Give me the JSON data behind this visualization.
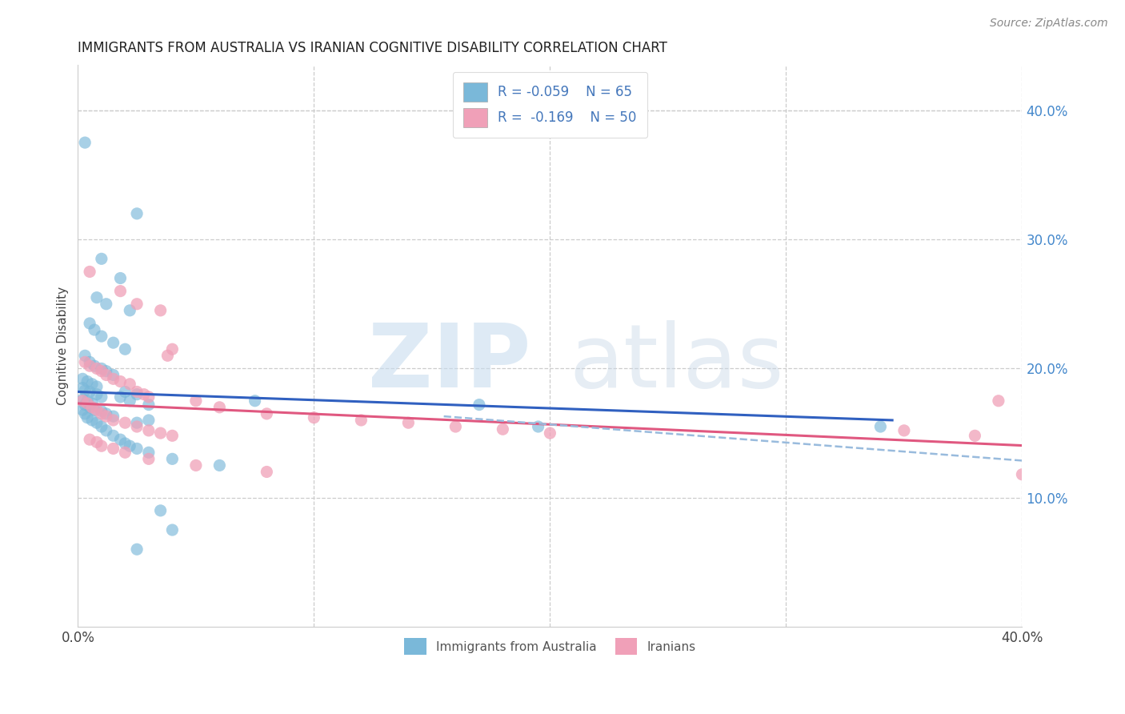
{
  "title": "IMMIGRANTS FROM AUSTRALIA VS IRANIAN COGNITIVE DISABILITY CORRELATION CHART",
  "source": "Source: ZipAtlas.com",
  "ylabel": "Cognitive Disability",
  "xlim": [
    0.0,
    0.4
  ],
  "ylim": [
    0.0,
    0.435
  ],
  "x_tick_positions": [
    0.0,
    0.1,
    0.2,
    0.3,
    0.4
  ],
  "x_tick_labels": [
    "0.0%",
    "",
    "",
    "",
    "40.0%"
  ],
  "y_ticks_right": [
    0.1,
    0.2,
    0.3,
    0.4
  ],
  "y_tick_labels_right": [
    "10.0%",
    "20.0%",
    "30.0%",
    "40.0%"
  ],
  "blue_color": "#7ab8d9",
  "pink_color": "#f0a0b8",
  "blue_line_color": "#3060c0",
  "pink_line_color": "#e05880",
  "dashed_line_color": "#99bbdd",
  "australia_scatter": [
    [
      0.003,
      0.375
    ],
    [
      0.025,
      0.32
    ],
    [
      0.01,
      0.285
    ],
    [
      0.018,
      0.27
    ],
    [
      0.008,
      0.255
    ],
    [
      0.012,
      0.25
    ],
    [
      0.022,
      0.245
    ],
    [
      0.005,
      0.235
    ],
    [
      0.007,
      0.23
    ],
    [
      0.01,
      0.225
    ],
    [
      0.015,
      0.22
    ],
    [
      0.02,
      0.215
    ],
    [
      0.003,
      0.21
    ],
    [
      0.005,
      0.205
    ],
    [
      0.007,
      0.202
    ],
    [
      0.01,
      0.2
    ],
    [
      0.012,
      0.198
    ],
    [
      0.015,
      0.195
    ],
    [
      0.002,
      0.192
    ],
    [
      0.004,
      0.19
    ],
    [
      0.006,
      0.188
    ],
    [
      0.008,
      0.186
    ],
    [
      0.002,
      0.185
    ],
    [
      0.003,
      0.183
    ],
    [
      0.005,
      0.182
    ],
    [
      0.008,
      0.18
    ],
    [
      0.01,
      0.178
    ],
    [
      0.002,
      0.176
    ],
    [
      0.004,
      0.175
    ],
    [
      0.006,
      0.173
    ],
    [
      0.003,
      0.172
    ],
    [
      0.005,
      0.17
    ],
    [
      0.007,
      0.168
    ],
    [
      0.01,
      0.167
    ],
    [
      0.012,
      0.165
    ],
    [
      0.015,
      0.163
    ],
    [
      0.018,
      0.178
    ],
    [
      0.02,
      0.182
    ],
    [
      0.022,
      0.175
    ],
    [
      0.025,
      0.18
    ],
    [
      0.03,
      0.172
    ],
    [
      0.002,
      0.168
    ],
    [
      0.003,
      0.165
    ],
    [
      0.004,
      0.162
    ],
    [
      0.006,
      0.16
    ],
    [
      0.008,
      0.158
    ],
    [
      0.01,
      0.155
    ],
    [
      0.025,
      0.158
    ],
    [
      0.03,
      0.16
    ],
    [
      0.012,
      0.152
    ],
    [
      0.015,
      0.148
    ],
    [
      0.018,
      0.145
    ],
    [
      0.02,
      0.142
    ],
    [
      0.022,
      0.14
    ],
    [
      0.025,
      0.138
    ],
    [
      0.03,
      0.135
    ],
    [
      0.04,
      0.13
    ],
    [
      0.06,
      0.125
    ],
    [
      0.075,
      0.175
    ],
    [
      0.17,
      0.172
    ],
    [
      0.195,
      0.155
    ],
    [
      0.34,
      0.155
    ],
    [
      0.035,
      0.09
    ],
    [
      0.04,
      0.075
    ],
    [
      0.025,
      0.06
    ]
  ],
  "iran_scatter": [
    [
      0.005,
      0.275
    ],
    [
      0.018,
      0.26
    ],
    [
      0.025,
      0.25
    ],
    [
      0.035,
      0.245
    ],
    [
      0.04,
      0.215
    ],
    [
      0.038,
      0.21
    ],
    [
      0.003,
      0.205
    ],
    [
      0.005,
      0.202
    ],
    [
      0.008,
      0.2
    ],
    [
      0.01,
      0.198
    ],
    [
      0.012,
      0.195
    ],
    [
      0.015,
      0.192
    ],
    [
      0.018,
      0.19
    ],
    [
      0.022,
      0.188
    ],
    [
      0.025,
      0.182
    ],
    [
      0.028,
      0.18
    ],
    [
      0.03,
      0.178
    ],
    [
      0.002,
      0.175
    ],
    [
      0.004,
      0.173
    ],
    [
      0.006,
      0.17
    ],
    [
      0.008,
      0.168
    ],
    [
      0.01,
      0.165
    ],
    [
      0.012,
      0.163
    ],
    [
      0.015,
      0.16
    ],
    [
      0.02,
      0.158
    ],
    [
      0.025,
      0.155
    ],
    [
      0.03,
      0.152
    ],
    [
      0.035,
      0.15
    ],
    [
      0.04,
      0.148
    ],
    [
      0.05,
      0.175
    ],
    [
      0.06,
      0.17
    ],
    [
      0.08,
      0.165
    ],
    [
      0.1,
      0.162
    ],
    [
      0.12,
      0.16
    ],
    [
      0.14,
      0.158
    ],
    [
      0.16,
      0.155
    ],
    [
      0.18,
      0.153
    ],
    [
      0.2,
      0.15
    ],
    [
      0.35,
      0.152
    ],
    [
      0.38,
      0.148
    ],
    [
      0.005,
      0.145
    ],
    [
      0.008,
      0.143
    ],
    [
      0.01,
      0.14
    ],
    [
      0.015,
      0.138
    ],
    [
      0.02,
      0.135
    ],
    [
      0.03,
      0.13
    ],
    [
      0.05,
      0.125
    ],
    [
      0.08,
      0.12
    ],
    [
      0.4,
      0.118
    ],
    [
      0.39,
      0.175
    ]
  ],
  "blue_line": [
    [
      0.0,
      0.182
    ],
    [
      0.345,
      0.16
    ]
  ],
  "pink_line": [
    [
      0.0,
      0.173
    ],
    [
      0.405,
      0.14
    ]
  ],
  "dashed_line": [
    [
      0.155,
      0.163
    ],
    [
      0.405,
      0.128
    ]
  ]
}
